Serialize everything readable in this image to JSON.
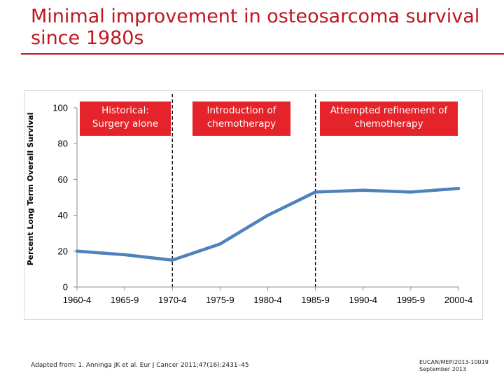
{
  "slide": {
    "title": "Minimal improvement in osteosarcoma survival\nsince 1980s",
    "footer_reference": "Adapted from: 1. Anninga JK et al. Eur J Cancer 2011;47(16):2431–45",
    "footer_code": "EUCAN/MEP/2013-10019\nSeptember 2013"
  },
  "colors": {
    "title": "#c0161e",
    "annotation_fill": "#e5232a",
    "line": "#4f81bd"
  },
  "chart_data": {
    "type": "line",
    "title": "",
    "xlabel": "",
    "ylabel": "Percent Long Term Overall Survival",
    "categories": [
      "1960-4",
      "1965-9",
      "1970-4",
      "1975-9",
      "1980-4",
      "1985-9",
      "1990-4",
      "1995-9",
      "2000-4"
    ],
    "series": [
      {
        "values": [
          20,
          18,
          15,
          24,
          40,
          53,
          54,
          53,
          55
        ]
      }
    ],
    "ylim": [
      0,
      100
    ],
    "yticks": [
      0,
      20,
      40,
      60,
      80,
      100
    ],
    "grid": false,
    "legend": "none",
    "dividers_at_categories": [
      "1970-4",
      "1985-9"
    ],
    "annotations": [
      {
        "text": "Historical:\nSurgery alone",
        "region": "1960-4 to 1970-4"
      },
      {
        "text": "Introduction of\nchemotherapy",
        "region": "1970-4 to 1985-9"
      },
      {
        "text": "Attempted refinement of\nchemotherapy",
        "region": "1985-9 to 2000-4"
      }
    ]
  }
}
